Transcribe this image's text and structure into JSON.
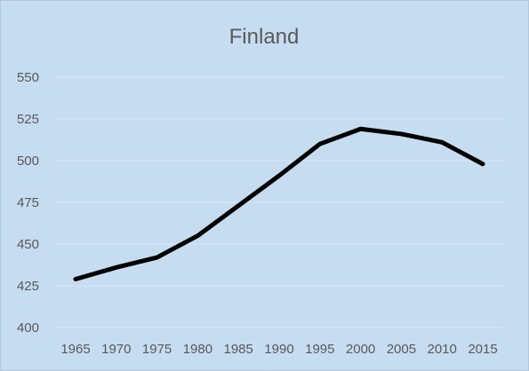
{
  "chart_data": {
    "type": "line",
    "title": "Finland",
    "xlabel": "",
    "ylabel": "",
    "x": [
      1965,
      1970,
      1975,
      1980,
      1985,
      1990,
      1995,
      2000,
      2005,
      2010,
      2015
    ],
    "series": [
      {
        "values": [
          429,
          436,
          442,
          455,
          473,
          491,
          510,
          519,
          516,
          511,
          498
        ],
        "color": "#000000"
      }
    ],
    "ylim": [
      400,
      550
    ],
    "yticks": [
      400,
      425,
      450,
      475,
      500,
      525,
      550
    ],
    "xtick_labels": [
      "1965",
      "1970",
      "1975",
      "1980",
      "1985",
      "1990",
      "1995",
      "2000",
      "2005",
      "2010",
      "2015"
    ],
    "ytick_labels": [
      "400",
      "425",
      "450",
      "475",
      "500",
      "525",
      "550"
    ],
    "grid": true,
    "legend": "none",
    "background": "#c5dcf1"
  }
}
